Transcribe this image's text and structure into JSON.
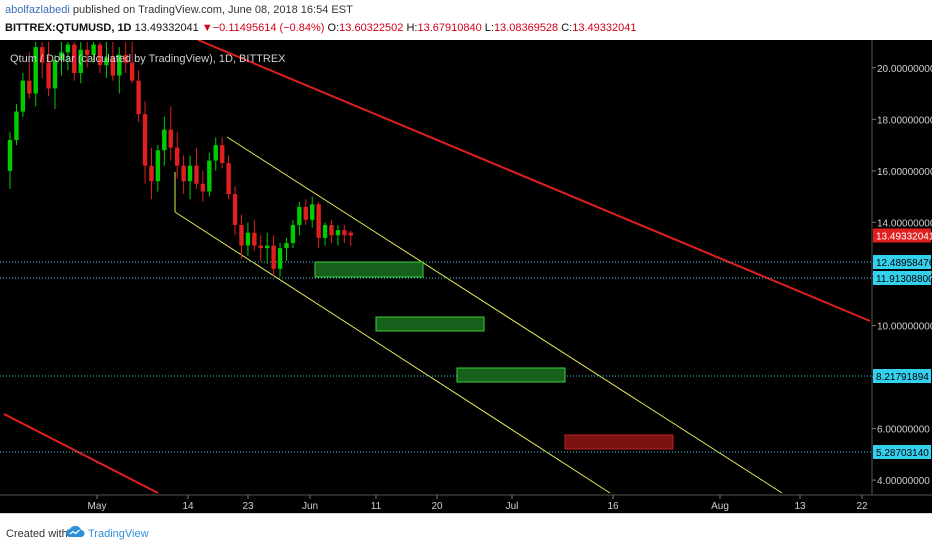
{
  "header": {
    "author": "abolfazlabedi",
    "published_text": "published on TradingView.com, June 08, 2018 16:54 EST",
    "symbol": "BITTREX:QTUMUSD, 1D",
    "last": "13.49332041",
    "change_arrow": "▼",
    "change": "−0.11495614 (−0.84%)",
    "o_label": "O:",
    "o_value": "13.60322502",
    "h_label": "H:",
    "h_value": "13.67910840",
    "l_label": "L:",
    "l_value": "13.08369528",
    "c_label": "C:",
    "c_value": "13.49332041"
  },
  "chart_title": "Qtum / Dollar (calculated by TradingView), 1D, BITTREX",
  "footer": {
    "created_with": "Created with",
    "brand": "TradingView",
    "logo_icon": "tradingview-logo-icon"
  },
  "colors": {
    "up": "#00cc00",
    "down": "#e21f1f",
    "channel": "#e8e85a",
    "red_line": "#e21f1f",
    "hline": "#3fc8e0",
    "zone_green": "#17611c",
    "zone_red": "#7a1212",
    "last_label": "#e21f1f",
    "level_label": "#34d1ee"
  },
  "chart_data": {
    "type": "candlestick",
    "title": "Qtum / Dollar (calculated by TradingView), 1D, BITTREX",
    "x_tick_labels": [
      "May",
      "14",
      "23",
      "Jun",
      "11",
      "20",
      "Jul",
      "16",
      "Aug",
      "13",
      "22"
    ],
    "y_tick_labels": [
      "20.00000000",
      "18.00000000",
      "16.00000000",
      "14.00000000",
      "12.00000000",
      "10.00000000",
      "8.00000000",
      "6.00000000",
      "4.00000000"
    ],
    "y_range": [
      3.5,
      21
    ],
    "last_price": "13.49332041",
    "horizontal_levels": [
      "12.48958476",
      "11.91308800",
      "8.21791894",
      "5.28703140"
    ],
    "candles": [
      {
        "o": 16.0,
        "h": 17.5,
        "l": 15.3,
        "c": 17.2
      },
      {
        "o": 17.2,
        "h": 18.6,
        "l": 17.0,
        "c": 18.3
      },
      {
        "o": 18.3,
        "h": 19.8,
        "l": 18.1,
        "c": 19.5
      },
      {
        "o": 19.5,
        "h": 20.6,
        "l": 18.8,
        "c": 19.0
      },
      {
        "o": 19.0,
        "h": 21.0,
        "l": 18.5,
        "c": 20.8
      },
      {
        "o": 20.8,
        "h": 21.0,
        "l": 19.6,
        "c": 20.2
      },
      {
        "o": 20.2,
        "h": 21.0,
        "l": 18.9,
        "c": 19.2
      },
      {
        "o": 19.2,
        "h": 20.5,
        "l": 18.4,
        "c": 20.3
      },
      {
        "o": 20.3,
        "h": 21.0,
        "l": 19.7,
        "c": 20.6
      },
      {
        "o": 20.6,
        "h": 21.0,
        "l": 19.9,
        "c": 20.9
      },
      {
        "o": 20.9,
        "h": 21.0,
        "l": 19.5,
        "c": 19.8
      },
      {
        "o": 19.8,
        "h": 21.0,
        "l": 19.4,
        "c": 20.7
      },
      {
        "o": 20.7,
        "h": 21.0,
        "l": 20.0,
        "c": 20.5
      },
      {
        "o": 20.5,
        "h": 21.0,
        "l": 20.2,
        "c": 20.9
      },
      {
        "o": 20.9,
        "h": 21.0,
        "l": 19.8,
        "c": 20.1
      },
      {
        "o": 20.1,
        "h": 21.0,
        "l": 19.6,
        "c": 20.4
      },
      {
        "o": 20.4,
        "h": 21.0,
        "l": 19.5,
        "c": 19.7
      },
      {
        "o": 19.7,
        "h": 20.8,
        "l": 19.0,
        "c": 20.5
      },
      {
        "o": 20.5,
        "h": 21.0,
        "l": 19.8,
        "c": 20.2
      },
      {
        "o": 20.2,
        "h": 21.0,
        "l": 19.4,
        "c": 19.5
      },
      {
        "o": 19.5,
        "h": 19.9,
        "l": 17.9,
        "c": 18.2
      },
      {
        "o": 18.2,
        "h": 18.7,
        "l": 15.5,
        "c": 16.2
      },
      {
        "o": 16.2,
        "h": 16.9,
        "l": 14.9,
        "c": 15.6
      },
      {
        "o": 15.6,
        "h": 17.0,
        "l": 15.2,
        "c": 16.8
      },
      {
        "o": 16.8,
        "h": 18.1,
        "l": 16.2,
        "c": 17.6
      },
      {
        "o": 17.6,
        "h": 18.5,
        "l": 16.4,
        "c": 16.9
      },
      {
        "o": 16.9,
        "h": 17.5,
        "l": 15.7,
        "c": 16.2
      },
      {
        "o": 16.2,
        "h": 16.6,
        "l": 15.1,
        "c": 15.6
      },
      {
        "o": 15.6,
        "h": 16.6,
        "l": 14.9,
        "c": 16.2
      },
      {
        "o": 16.2,
        "h": 16.9,
        "l": 15.3,
        "c": 15.5
      },
      {
        "o": 15.5,
        "h": 16.0,
        "l": 14.8,
        "c": 15.2
      },
      {
        "o": 15.2,
        "h": 16.7,
        "l": 15.0,
        "c": 16.4
      },
      {
        "o": 16.4,
        "h": 17.3,
        "l": 16.0,
        "c": 17.0
      },
      {
        "o": 17.0,
        "h": 17.3,
        "l": 16.1,
        "c": 16.3
      },
      {
        "o": 16.3,
        "h": 16.6,
        "l": 14.9,
        "c": 15.1
      },
      {
        "o": 15.1,
        "h": 15.4,
        "l": 13.5,
        "c": 13.9
      },
      {
        "o": 13.9,
        "h": 14.3,
        "l": 12.6,
        "c": 13.1
      },
      {
        "o": 13.1,
        "h": 14.0,
        "l": 12.7,
        "c": 13.6
      },
      {
        "o": 13.6,
        "h": 14.1,
        "l": 12.9,
        "c": 13.1
      },
      {
        "o": 13.1,
        "h": 13.5,
        "l": 12.5,
        "c": 13.0
      },
      {
        "o": 13.0,
        "h": 13.6,
        "l": 12.4,
        "c": 13.1
      },
      {
        "o": 13.1,
        "h": 13.5,
        "l": 11.9,
        "c": 12.2
      },
      {
        "o": 12.2,
        "h": 13.2,
        "l": 11.9,
        "c": 13.0
      },
      {
        "o": 13.0,
        "h": 13.4,
        "l": 12.5,
        "c": 13.2
      },
      {
        "o": 13.2,
        "h": 14.1,
        "l": 13.0,
        "c": 13.9
      },
      {
        "o": 13.9,
        "h": 14.8,
        "l": 13.5,
        "c": 14.6
      },
      {
        "o": 14.6,
        "h": 14.9,
        "l": 13.9,
        "c": 14.1
      },
      {
        "o": 14.1,
        "h": 15.0,
        "l": 13.8,
        "c": 14.7
      },
      {
        "o": 14.7,
        "h": 14.8,
        "l": 13.0,
        "c": 13.4
      },
      {
        "o": 13.4,
        "h": 14.0,
        "l": 13.1,
        "c": 13.9
      },
      {
        "o": 13.9,
        "h": 14.1,
        "l": 13.2,
        "c": 13.5
      },
      {
        "o": 13.5,
        "h": 13.9,
        "l": 13.1,
        "c": 13.7
      },
      {
        "o": 13.7,
        "h": 13.9,
        "l": 13.2,
        "c": 13.5
      },
      {
        "o": 13.603,
        "h": 13.679,
        "l": 13.084,
        "c": 13.493
      }
    ]
  }
}
